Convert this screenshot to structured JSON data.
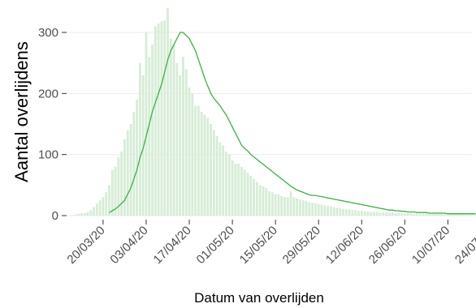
{
  "chart_data": {
    "type": "bar",
    "xlabel": "Datum van overlijden",
    "ylabel": "Aantal overlijdens",
    "ylim": [
      0,
      350
    ],
    "y_ticks": [
      0,
      100,
      200,
      300
    ],
    "x_tick_labels": [
      "20/03/20",
      "03/04/20",
      "17/04/20",
      "01/05/20",
      "15/05/20",
      "29/05/20",
      "12/06/20",
      "26/06/20",
      "10/07/20",
      "24/07/20"
    ],
    "grid": true,
    "x_start_date": "2020-03-10",
    "colors": {
      "bars": "#d6ecd6",
      "line": "#3cb043",
      "grid": "#ebebeb",
      "tick_text": "#4d4d4d"
    },
    "series": [
      {
        "kind": "bars",
        "values": [
          1,
          2,
          3,
          4,
          4,
          6,
          9,
          14,
          20,
          25,
          30,
          38,
          50,
          75,
          80,
          95,
          105,
          125,
          140,
          150,
          170,
          190,
          250,
          230,
          300,
          260,
          280,
          310,
          315,
          318,
          320,
          340,
          290,
          280,
          250,
          230,
          260,
          240,
          210,
          200,
          180,
          180,
          170,
          165,
          160,
          150,
          140,
          130,
          120,
          115,
          105,
          100,
          90,
          85,
          85,
          80,
          75,
          70,
          65,
          60,
          55,
          50,
          48,
          45,
          40,
          38,
          35,
          35,
          32,
          30,
          30,
          40,
          30,
          28,
          26,
          25,
          24,
          22,
          21,
          20,
          19,
          18,
          17,
          16,
          15,
          14,
          13,
          12,
          11,
          10,
          10,
          9,
          9,
          8,
          8,
          7,
          7,
          6,
          6,
          6,
          5,
          5,
          5,
          5,
          5,
          4,
          4,
          4,
          4,
          4,
          4,
          3,
          3,
          3,
          3,
          3,
          3,
          3,
          3,
          3,
          3,
          3,
          2,
          2,
          2,
          2,
          2,
          2,
          2,
          2,
          2,
          2,
          2
        ]
      },
      {
        "kind": "line",
        "values": [
          null,
          null,
          null,
          null,
          null,
          null,
          null,
          null,
          null,
          null,
          null,
          null,
          5,
          8,
          11,
          15,
          20,
          25,
          35,
          45,
          60,
          75,
          95,
          110,
          130,
          150,
          170,
          185,
          200,
          215,
          235,
          255,
          270,
          280,
          290,
          300,
          300,
          295,
          290,
          280,
          270,
          255,
          240,
          225,
          212,
          200,
          192,
          186,
          180,
          172,
          165,
          155,
          145,
          135,
          125,
          115,
          110,
          106,
          100,
          96,
          92,
          88,
          84,
          80,
          76,
          72,
          68,
          64,
          60,
          56,
          52,
          48,
          45,
          42,
          40,
          38,
          36,
          34,
          33,
          33,
          32,
          31,
          30,
          29,
          28,
          27,
          26,
          25,
          24,
          23,
          22,
          21,
          20,
          19,
          18,
          17,
          16,
          15,
          14,
          13,
          12,
          11,
          10,
          9,
          9,
          8,
          8,
          7,
          7,
          6,
          6,
          6,
          5,
          5,
          5,
          5,
          4,
          4,
          4,
          4,
          4,
          4,
          3,
          3,
          3,
          3,
          3,
          3,
          3,
          3,
          3,
          3
        ]
      }
    ]
  }
}
